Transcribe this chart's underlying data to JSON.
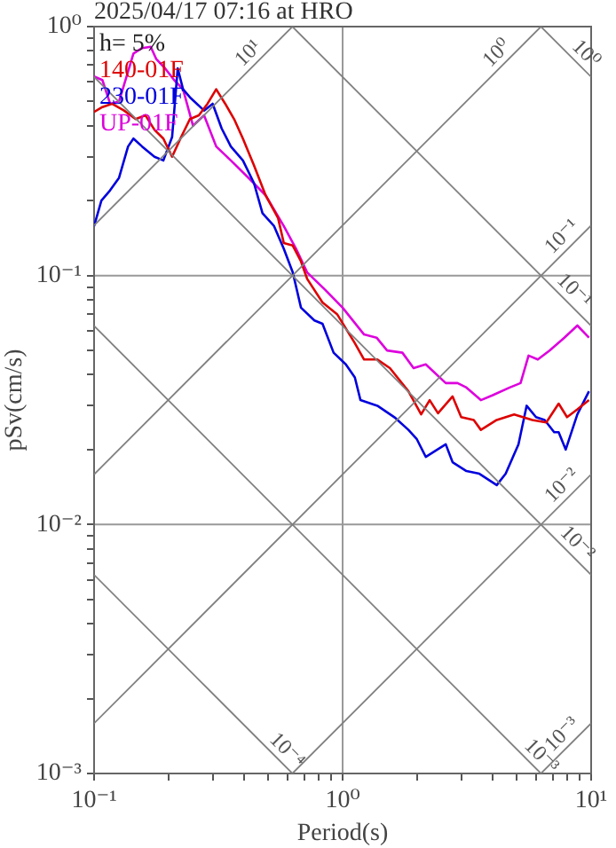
{
  "chart_data": {
    "type": "line",
    "title": "2025/04/17 07:16 at HRO",
    "xlabel": "Period(s)",
    "ylabel": "pSv(cm/s)",
    "log": "xy",
    "grid": true,
    "legend": "top left",
    "xlim": [
      0.1,
      10
    ],
    "ylim": [
      0.001,
      1
    ],
    "xticks": [
      {
        "value": 0.1,
        "label": "10⁻¹"
      },
      {
        "value": 0.2,
        "label": null
      },
      {
        "value": 0.3,
        "label": null
      },
      {
        "value": 0.4,
        "label": null
      },
      {
        "value": 0.5,
        "label": null
      },
      {
        "value": 0.6,
        "label": null
      },
      {
        "value": 0.7,
        "label": null
      },
      {
        "value": 0.8,
        "label": null
      },
      {
        "value": 0.9,
        "label": null
      },
      {
        "value": 1,
        "label": "10⁰"
      },
      {
        "value": 2,
        "label": null
      },
      {
        "value": 3,
        "label": null
      },
      {
        "value": 4,
        "label": null
      },
      {
        "value": 5,
        "label": null
      },
      {
        "value": 6,
        "label": null
      },
      {
        "value": 7,
        "label": null
      },
      {
        "value": 8,
        "label": null
      },
      {
        "value": 9,
        "label": null
      },
      {
        "value": 10,
        "label": "10¹"
      }
    ],
    "yticks": [
      {
        "value": 0.001,
        "label": "10⁻³"
      },
      {
        "value": 0.002,
        "label": null
      },
      {
        "value": 0.003,
        "label": null
      },
      {
        "value": 0.004,
        "label": null
      },
      {
        "value": 0.005,
        "label": null
      },
      {
        "value": 0.006,
        "label": null
      },
      {
        "value": 0.007,
        "label": null
      },
      {
        "value": 0.008,
        "label": null
      },
      {
        "value": 0.009,
        "label": null
      },
      {
        "value": 0.01,
        "label": "10⁻²"
      },
      {
        "value": 0.02,
        "label": null
      },
      {
        "value": 0.03,
        "label": null
      },
      {
        "value": 0.04,
        "label": null
      },
      {
        "value": 0.05,
        "label": null
      },
      {
        "value": 0.06,
        "label": null
      },
      {
        "value": 0.07,
        "label": null
      },
      {
        "value": 0.08,
        "label": null
      },
      {
        "value": 0.09,
        "label": null
      },
      {
        "value": 0.1,
        "label": "10⁻¹"
      },
      {
        "value": 0.2,
        "label": null
      },
      {
        "value": 0.3,
        "label": null
      },
      {
        "value": 0.4,
        "label": null
      },
      {
        "value": 0.5,
        "label": null
      },
      {
        "value": 0.6,
        "label": null
      },
      {
        "value": 0.7,
        "label": null
      },
      {
        "value": 0.8,
        "label": null
      },
      {
        "value": 0.9,
        "label": null
      },
      {
        "value": 1,
        "label": "10⁰"
      }
    ],
    "series": [
      {
        "color": "#808080",
        "x": [
          0.1,
          0.628
        ],
        "values": [
          0.159,
          1
        ]
      },
      {
        "color": "#808080",
        "x": [
          0.1,
          6.28
        ],
        "values": [
          0.0159,
          1
        ]
      },
      {
        "color": "#808080",
        "x": [
          0.1,
          10
        ],
        "values": [
          0.00159,
          0.159
        ]
      },
      {
        "color": "#808080",
        "x": [
          0.628,
          10
        ],
        "values": [
          0.001,
          0.0159
        ]
      },
      {
        "color": "#808080",
        "x": [
          6.28,
          10
        ],
        "values": [
          0.001,
          0.00159
        ]
      },
      {
        "color": "#808080",
        "x": [
          6.28,
          10
        ],
        "values": [
          1,
          0.628
        ]
      },
      {
        "color": "#808080",
        "x": [
          0.628,
          10
        ],
        "values": [
          1,
          0.0628
        ]
      },
      {
        "color": "#808080",
        "x": [
          0.1,
          10
        ],
        "values": [
          0.628,
          0.00628
        ]
      },
      {
        "color": "#808080",
        "x": [
          0.1,
          6.28
        ],
        "values": [
          0.0628,
          0.001
        ]
      },
      {
        "color": "#808080",
        "x": [
          0.1,
          0.628
        ],
        "values": [
          0.00628,
          0.001
        ]
      },
      {
        "name": "140-01F",
        "color": "#dd0000",
        "x": [
          0.1,
          0.108,
          0.118,
          0.132,
          0.147,
          0.161,
          0.175,
          0.19,
          0.206,
          0.224,
          0.243,
          0.264,
          0.286,
          0.31,
          0.337,
          0.366,
          0.397,
          0.44,
          0.49,
          0.55,
          0.58,
          0.63,
          0.68,
          0.72,
          0.83,
          0.95,
          1.12,
          1.22,
          1.38,
          1.55,
          1.84,
          2.07,
          2.24,
          2.42,
          2.77,
          3.0,
          3.37,
          3.6,
          4.17,
          4.9,
          5.8,
          6.6,
          7.4,
          8.0,
          8.8,
          9.8
        ],
        "values": [
          0.454,
          0.475,
          0.49,
          0.46,
          0.425,
          0.44,
          0.385,
          0.355,
          0.3,
          0.36,
          0.425,
          0.44,
          0.49,
          0.56,
          0.49,
          0.425,
          0.355,
          0.277,
          0.21,
          0.17,
          0.135,
          0.132,
          0.114,
          0.097,
          0.078,
          0.07,
          0.0535,
          0.046,
          0.046,
          0.0425,
          0.0343,
          0.0277,
          0.0316,
          0.028,
          0.0327,
          0.027,
          0.0263,
          0.024,
          0.0263,
          0.0277,
          0.0263,
          0.0257,
          0.0306,
          0.027,
          0.029,
          0.0316
        ]
      },
      {
        "name": "230-01F",
        "color": "#0000dd",
        "x": [
          0.1,
          0.107,
          0.116,
          0.126,
          0.137,
          0.144,
          0.156,
          0.175,
          0.19,
          0.206,
          0.217,
          0.228,
          0.243,
          0.277,
          0.3,
          0.326,
          0.355,
          0.397,
          0.44,
          0.476,
          0.53,
          0.58,
          0.63,
          0.68,
          0.77,
          0.83,
          0.92,
          1.03,
          1.12,
          1.18,
          1.38,
          1.63,
          1.84,
          1.99,
          2.16,
          2.6,
          2.77,
          3.15,
          3.55,
          4.17,
          4.53,
          5.1,
          5.5,
          6.0,
          6.5,
          7.1,
          7.4,
          7.9,
          8.8,
          9.8
        ],
        "values": [
          0.158,
          0.2,
          0.22,
          0.247,
          0.33,
          0.355,
          0.33,
          0.3,
          0.29,
          0.36,
          0.68,
          0.56,
          0.52,
          0.46,
          0.49,
          0.39,
          0.33,
          0.29,
          0.235,
          0.178,
          0.158,
          0.128,
          0.103,
          0.0743,
          0.066,
          0.064,
          0.049,
          0.044,
          0.039,
          0.0316,
          0.03,
          0.0268,
          0.024,
          0.022,
          0.0187,
          0.021,
          0.0178,
          0.0164,
          0.016,
          0.0144,
          0.016,
          0.021,
          0.03,
          0.027,
          0.0263,
          0.0235,
          0.0235,
          0.02,
          0.0277,
          0.0343
        ]
      },
      {
        "name": "UP-01F",
        "color": "#dd00dd",
        "x": [
          0.1,
          0.108,
          0.116,
          0.126,
          0.137,
          0.144,
          0.156,
          0.169,
          0.178,
          0.193,
          0.21,
          0.228,
          0.25,
          0.277,
          0.31,
          0.355,
          0.418,
          0.49,
          0.58,
          0.65,
          0.72,
          0.85,
          1.0,
          1.22,
          1.37,
          1.51,
          1.74,
          1.93,
          2.16,
          2.6,
          2.9,
          3.15,
          3.6,
          4.0,
          4.7,
          5.2,
          5.6,
          6.1,
          6.8,
          7.8,
          8.8,
          9.8
        ],
        "values": [
          0.63,
          0.61,
          0.49,
          0.5,
          0.66,
          0.78,
          0.82,
          0.83,
          0.74,
          0.68,
          0.61,
          0.56,
          0.4,
          0.44,
          0.33,
          0.29,
          0.247,
          0.21,
          0.158,
          0.128,
          0.103,
          0.0877,
          0.0743,
          0.058,
          0.0563,
          0.05,
          0.049,
          0.0425,
          0.044,
          0.037,
          0.037,
          0.0355,
          0.0316,
          0.033,
          0.0355,
          0.037,
          0.0477,
          0.046,
          0.05,
          0.0563,
          0.063,
          0.0563
        ]
      }
    ],
    "annotations": [
      "h= 5%",
      {
        "text": "10¹",
        "x": 0.454,
        "y": 0.72
      },
      {
        "text": "10⁰",
        "x": 4.54,
        "y": 0.72
      },
      {
        "text": "10⁰",
        "x": 8.77,
        "y": 0.716
      },
      {
        "text": "10⁻¹",
        "x": 8.3,
        "y": 0.132
      },
      {
        "text": "10⁻¹",
        "x": 7.85,
        "y": 0.08
      },
      {
        "text": "10⁻²",
        "x": 8.3,
        "y": 0.0132
      },
      {
        "text": "10⁻²",
        "x": 8.1,
        "y": 0.00775
      },
      {
        "text": "10⁻⁴",
        "x": 0.55,
        "y": 0.00114
      },
      {
        "text": "10⁻³",
        "x": 5.8,
        "y": 0.00108
      },
      {
        "text": "10⁻³",
        "x": 8.3,
        "y": 0.00132
      }
    ]
  }
}
